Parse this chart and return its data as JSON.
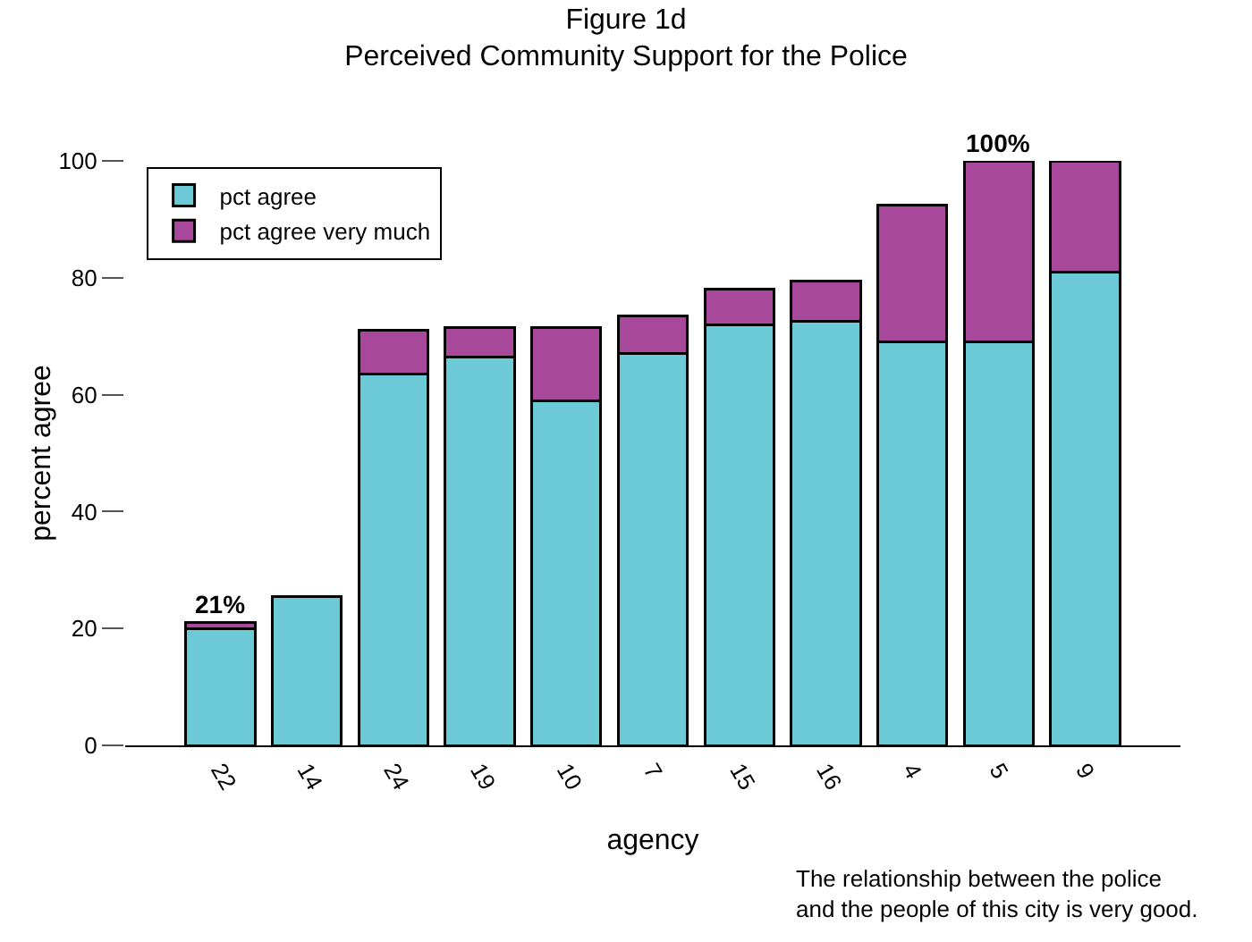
{
  "chart_data": {
    "type": "bar",
    "title": "Figure 1d\nPerceived Community Support for the Police",
    "xlabel": "agency",
    "ylabel": "percent agree",
    "categories": [
      "22",
      "14",
      "24",
      "19",
      "10",
      "7",
      "15",
      "16",
      "4",
      "5",
      "9"
    ],
    "stacked": true,
    "ylim": [
      0,
      100
    ],
    "yticks": [
      0,
      20,
      40,
      60,
      80,
      100
    ],
    "grid": false,
    "legend": "top left",
    "series": [
      {
        "name": "pct agree",
        "color": "#6ccad6",
        "values": [
          20,
          25.5,
          63.5,
          66.5,
          59,
          67,
          72,
          72.5,
          69,
          69,
          81
        ]
      },
      {
        "name": "pct agree very much",
        "color": "#a8489a",
        "values": [
          1,
          null,
          7.5,
          5,
          12.5,
          6.5,
          6,
          7,
          23.5,
          31,
          19
        ]
      }
    ],
    "annotations": [
      {
        "text": "21%",
        "x": "22",
        "y": 21
      },
      {
        "text": "100%",
        "x": "5",
        "y": 100
      },
      "The relationship between the police\nand the people of this city is very good."
    ]
  }
}
